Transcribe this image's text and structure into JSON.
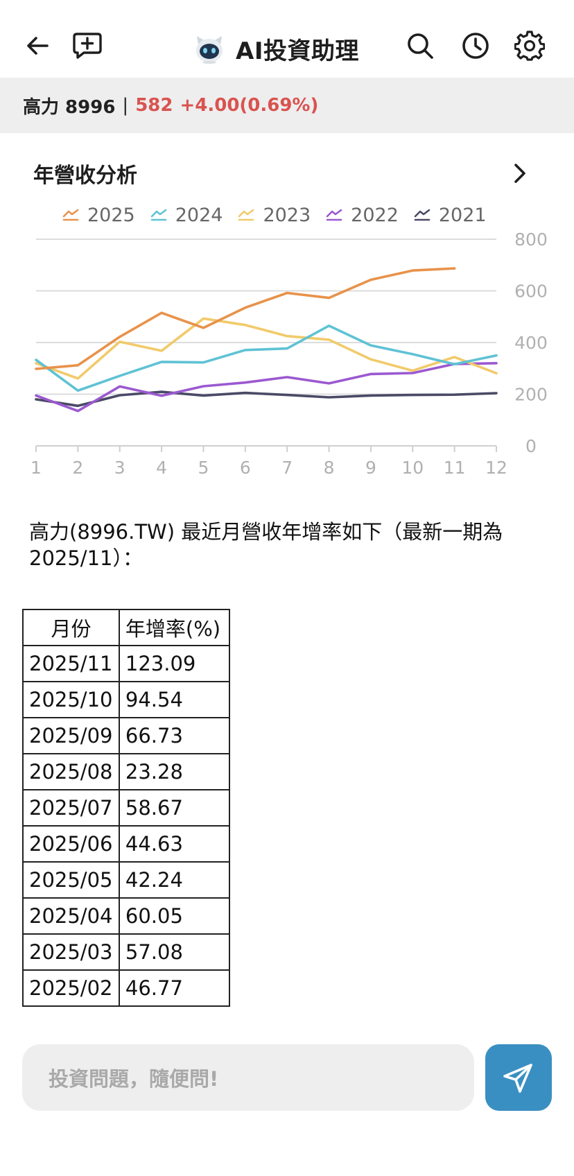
{
  "header": {
    "title": "AI投資助理",
    "icons": [
      "back-arrow-icon",
      "new-chat-icon",
      "search-icon",
      "history-icon",
      "gear-icon"
    ]
  },
  "stock": {
    "name": "高力 8996",
    "separator": "|",
    "price": "582",
    "change": "+4.00(0.69%)",
    "color": "#d9534f"
  },
  "chart_card": {
    "title": "年營收分析"
  },
  "chart_data": {
    "type": "line",
    "title": "年營收分析",
    "x": [
      1,
      2,
      3,
      4,
      5,
      6,
      7,
      8,
      9,
      10,
      11,
      12
    ],
    "x_tick_labels": [
      "1",
      "2",
      "3",
      "4",
      "5",
      "6",
      "7",
      "8",
      "9",
      "10",
      "11",
      "12"
    ],
    "y_ticks": [
      0,
      200,
      400,
      600,
      800
    ],
    "y_tick_labels": [
      "0",
      "200",
      "400",
      "600",
      "800"
    ],
    "ylim": [
      0,
      800
    ],
    "grid": true,
    "legend_position": "top",
    "series": [
      {
        "name": "2025",
        "color": "#e8924a",
        "values": [
          298,
          312,
          422,
          515,
          457,
          535,
          592,
          573,
          643,
          679,
          687,
          null
        ]
      },
      {
        "name": "2024",
        "color": "#5fc2d4",
        "values": [
          333,
          214,
          271,
          325,
          323,
          371,
          377,
          465,
          389,
          355,
          316,
          350
        ]
      },
      {
        "name": "2023",
        "color": "#f1ca6a",
        "values": [
          320,
          261,
          403,
          368,
          493,
          468,
          425,
          411,
          335,
          291,
          344,
          281
        ]
      },
      {
        "name": "2022",
        "color": "#9b59d0",
        "values": [
          195,
          135,
          230,
          194,
          231,
          245,
          266,
          242,
          278,
          282,
          317,
          320
        ]
      },
      {
        "name": "2021",
        "color": "#4a4a66",
        "values": [
          180,
          155,
          196,
          209,
          195,
          205,
          197,
          188,
          195,
          197,
          198,
          204
        ]
      }
    ]
  },
  "summary_text": "高力(8996.TW) 最近月營收年增率如下（最新一期為2025/11）：",
  "table": {
    "headers": [
      "月份",
      "年增率(%)"
    ],
    "rows": [
      [
        "2025/11",
        "123.09"
      ],
      [
        "2025/10",
        "94.54"
      ],
      [
        "2025/09",
        "66.73"
      ],
      [
        "2025/08",
        "23.28"
      ],
      [
        "2025/07",
        "58.67"
      ],
      [
        "2025/06",
        "44.63"
      ],
      [
        "2025/05",
        "42.24"
      ],
      [
        "2025/04",
        "60.05"
      ],
      [
        "2025/03",
        "57.08"
      ],
      [
        "2025/02",
        "46.77"
      ]
    ]
  },
  "input": {
    "placeholder": "投資問題，隨便問!"
  },
  "colors": {
    "send_button": "#3a8fc2",
    "stock_bar_bg": "#eeeeee"
  }
}
